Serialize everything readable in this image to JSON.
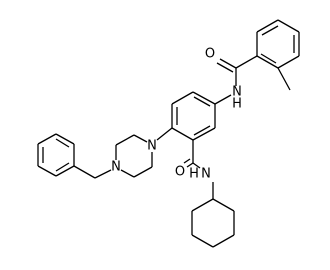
{
  "atoms": [
    {
      "label": "O"
    },
    {
      "label": "N"
    },
    {
      "label": "H"
    },
    {
      "label": "O"
    },
    {
      "label": "N"
    },
    {
      "label": "H"
    },
    {
      "label": "N"
    },
    {
      "label": "N"
    }
  ]
}
